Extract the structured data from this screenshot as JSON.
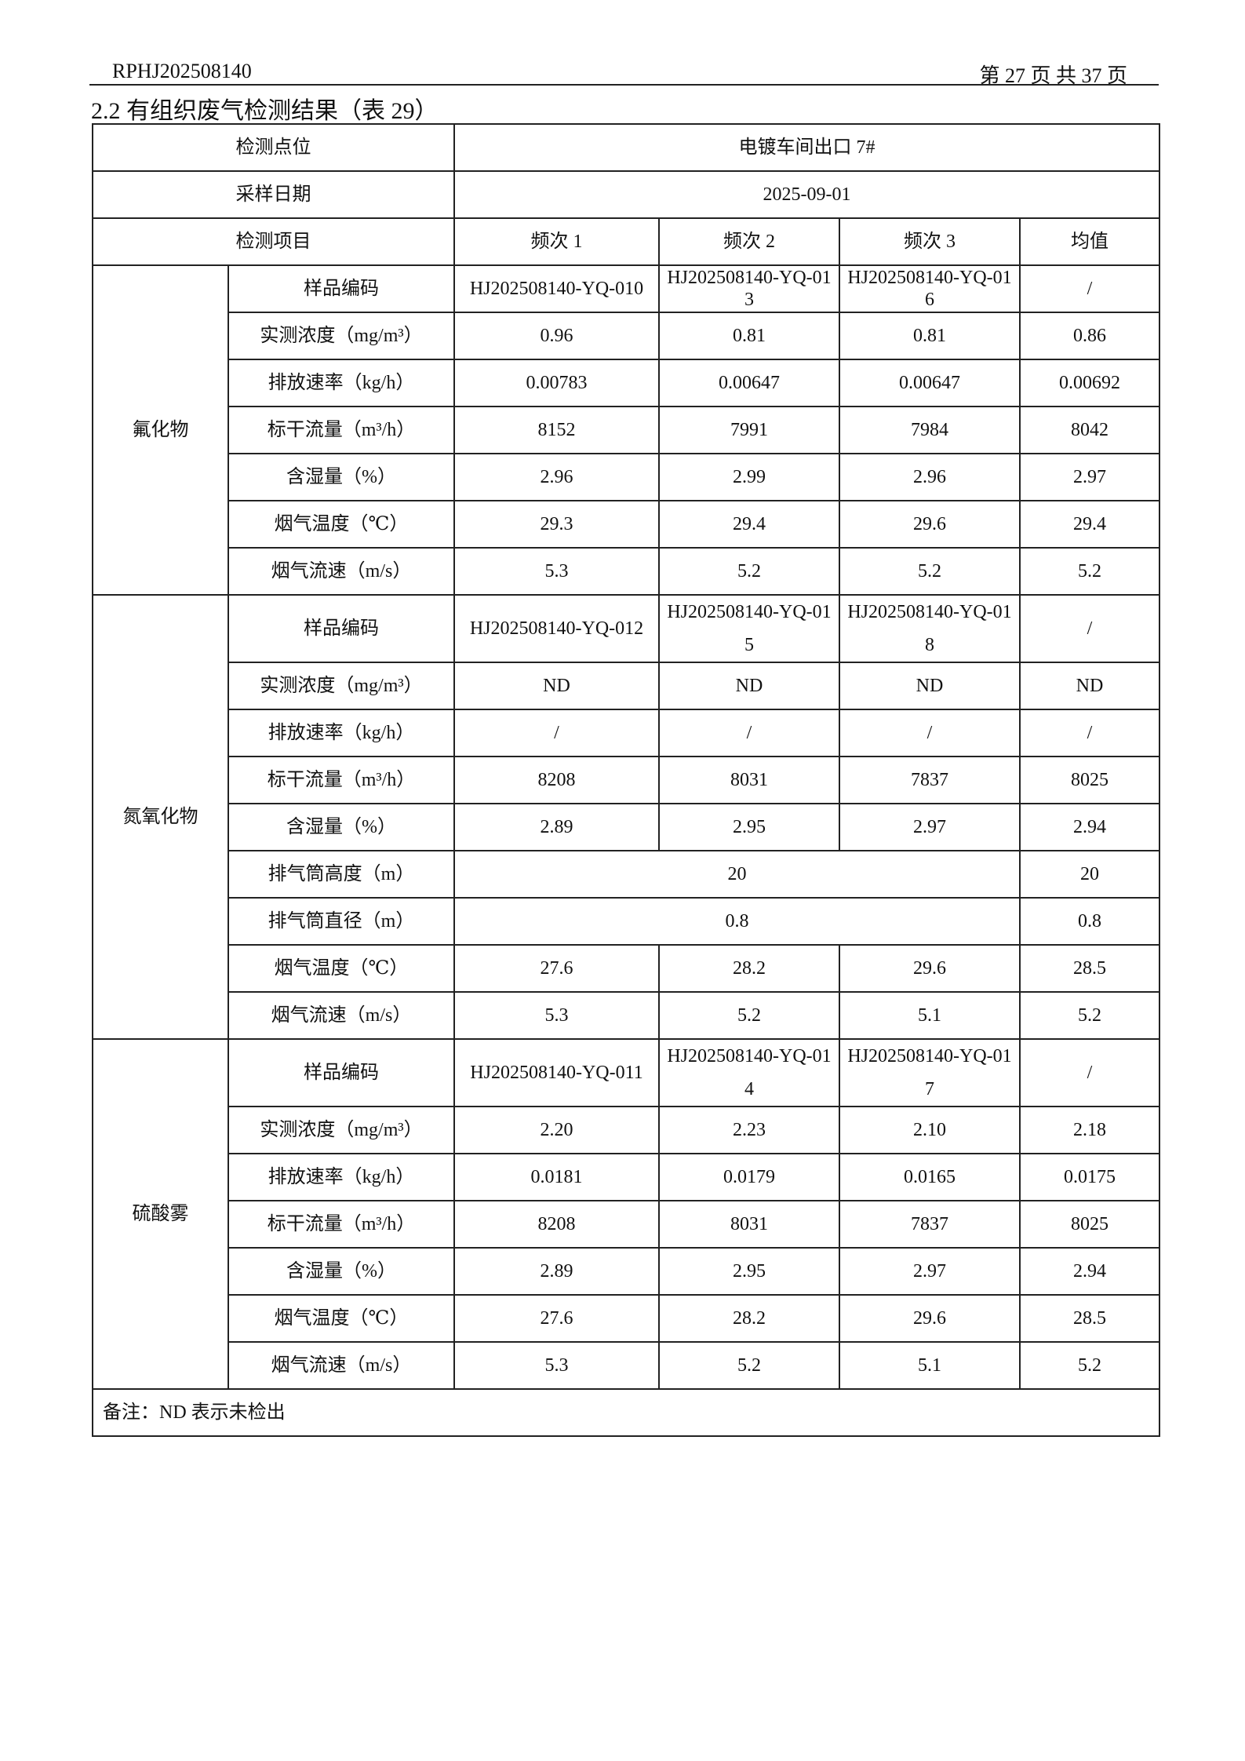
{
  "header": {
    "report_no": "RPHJ202508140",
    "page": "第 27 页 共 37 页"
  },
  "title": "2.2 有组织废气检测结果（表 29）",
  "table": {
    "location_label": "检测点位",
    "location": "电镀车间出口 7#",
    "date_label": "采样日期",
    "date": "2025-09-01",
    "item_label": "检测项目",
    "columns": [
      "频次 1",
      "频次 2",
      "频次 3",
      "均值"
    ],
    "groups": [
      {
        "name": "氟化物",
        "rows": [
          {
            "label": "样品编码",
            "cells": [
              "HJ202508140-YQ-010",
              "HJ202508140-YQ-013",
              "HJ202508140-YQ-016",
              "/"
            ]
          },
          {
            "label": "实测浓度（mg/m³）",
            "cells": [
              "0.96",
              "0.81",
              "0.81",
              "0.86"
            ]
          },
          {
            "label": "排放速率（kg/h）",
            "cells": [
              "0.00783",
              "0.00647",
              "0.00647",
              "0.00692"
            ]
          },
          {
            "label": "标干流量（m³/h）",
            "cells": [
              "8152",
              "7991",
              "7984",
              "8042"
            ]
          },
          {
            "label": "含湿量（%）",
            "cells": [
              "2.96",
              "2.99",
              "2.96",
              "2.97"
            ]
          },
          {
            "label": "烟气温度（℃）",
            "cells": [
              "29.3",
              "29.4",
              "29.6",
              "29.4"
            ]
          },
          {
            "label": "烟气流速（m/s）",
            "cells": [
              "5.3",
              "5.2",
              "5.2",
              "5.2"
            ]
          }
        ]
      },
      {
        "name": "氮氧化物",
        "rows": [
          {
            "label": "样品编码",
            "cells": [
              "HJ202508140-YQ-012",
              "HJ202508140-YQ-015",
              "HJ202508140-YQ-018",
              "/"
            ]
          },
          {
            "label": "实测浓度（mg/m³）",
            "cells": [
              "ND",
              "ND",
              "ND",
              "ND"
            ]
          },
          {
            "label": "排放速率（kg/h）",
            "cells": [
              "/",
              "/",
              "/",
              "/"
            ]
          },
          {
            "label": "标干流量（m³/h）",
            "cells": [
              "8208",
              "8031",
              "7837",
              "8025"
            ]
          },
          {
            "label": "含湿量（%）",
            "cells": [
              "2.89",
              "2.95",
              "2.97",
              "2.94"
            ]
          },
          {
            "label": "排气筒高度（m）",
            "cells": [
              "20",
              "20"
            ]
          },
          {
            "label": "排气筒直径（m）",
            "cells": [
              "0.8",
              "0.8"
            ]
          },
          {
            "label": "烟气温度（℃）",
            "cells": [
              "27.6",
              "28.2",
              "29.6",
              "28.5"
            ]
          },
          {
            "label": "烟气流速（m/s）",
            "cells": [
              "5.3",
              "5.2",
              "5.1",
              "5.2"
            ]
          }
        ]
      },
      {
        "name": "硫酸雾",
        "rows": [
          {
            "label": "样品编码",
            "cells": [
              "HJ202508140-YQ-011",
              "HJ202508140-YQ-014",
              "HJ202508140-YQ-017",
              "/"
            ]
          },
          {
            "label": "实测浓度（mg/m³）",
            "cells": [
              "2.20",
              "2.23",
              "2.10",
              "2.18"
            ]
          },
          {
            "label": "排放速率（kg/h）",
            "cells": [
              "0.0181",
              "0.0179",
              "0.0165",
              "0.0175"
            ]
          },
          {
            "label": "标干流量（m³/h）",
            "cells": [
              "8208",
              "8031",
              "7837",
              "8025"
            ]
          },
          {
            "label": "含湿量（%）",
            "cells": [
              "2.89",
              "2.95",
              "2.97",
              "2.94"
            ]
          },
          {
            "label": "烟气温度（℃）",
            "cells": [
              "27.6",
              "28.2",
              "29.6",
              "28.5"
            ]
          },
          {
            "label": "烟气流速（m/s）",
            "cells": [
              "5.3",
              "5.2",
              "5.1",
              "5.2"
            ]
          }
        ]
      }
    ],
    "note": "备注：ND 表示未检出"
  }
}
